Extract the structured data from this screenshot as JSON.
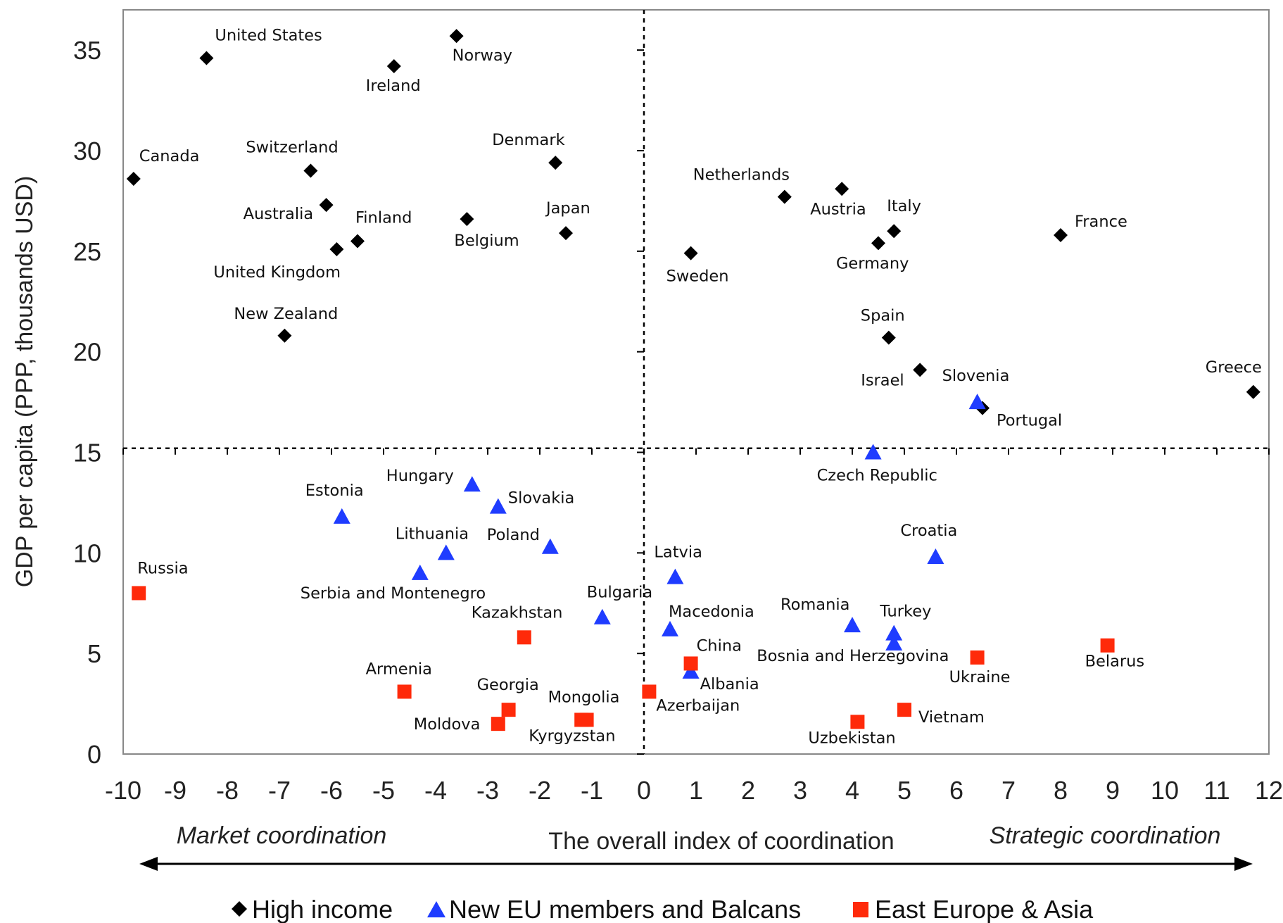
{
  "chart_data": {
    "type": "scatter",
    "title": "",
    "xlabel": "The overall index of coordination",
    "ylabel": "GDP per capita (PPP, thousands USD)",
    "xlim": [
      -10,
      12
    ],
    "ylim": [
      0,
      37
    ],
    "x_ticks": [
      -10,
      -9,
      -8,
      -7,
      -6,
      -5,
      -4,
      -3,
      -2,
      -1,
      0,
      1,
      2,
      3,
      4,
      5,
      6,
      7,
      8,
      9,
      10,
      11,
      12
    ],
    "y_ticks": [
      0,
      5,
      10,
      15,
      20,
      25,
      30,
      35
    ],
    "reference_lines": {
      "x": 0,
      "y": 15.2,
      "style": "dashed"
    },
    "annotations": {
      "left": "Market coordination",
      "right": "Strategic coordination"
    },
    "legend": {
      "position": "bottom",
      "entries": [
        "High income",
        "New EU members and  Balcans",
        "East Europe & Asia"
      ]
    },
    "colors": {
      "High income": "#000000",
      "New EU members and  Balcans": "#1f3cff",
      "East Europe & Asia": "#ff2a0a"
    },
    "series": [
      {
        "name": "High income",
        "marker": "diamond",
        "points": [
          {
            "label": "United States",
            "x": -8.4,
            "y": 34.6
          },
          {
            "label": "Norway",
            "x": -3.6,
            "y": 35.7
          },
          {
            "label": "Ireland",
            "x": -4.8,
            "y": 34.2
          },
          {
            "label": "Canada",
            "x": -9.8,
            "y": 28.6
          },
          {
            "label": "Switzerland",
            "x": -6.4,
            "y": 29.0
          },
          {
            "label": "Denmark",
            "x": -1.7,
            "y": 29.4
          },
          {
            "label": "Australia",
            "x": -6.1,
            "y": 27.3
          },
          {
            "label": "Finland",
            "x": -5.5,
            "y": 25.5
          },
          {
            "label": "Belgium",
            "x": -3.4,
            "y": 26.6
          },
          {
            "label": "Japan",
            "x": -1.5,
            "y": 25.9
          },
          {
            "label": "United Kingdom",
            "x": -5.9,
            "y": 25.1
          },
          {
            "label": "New Zealand",
            "x": -6.9,
            "y": 20.8
          },
          {
            "label": "Netherlands",
            "x": 2.7,
            "y": 27.7
          },
          {
            "label": "Austria",
            "x": 3.8,
            "y": 28.1
          },
          {
            "label": "Italy",
            "x": 4.8,
            "y": 26.0
          },
          {
            "label": "Germany",
            "x": 4.5,
            "y": 25.4
          },
          {
            "label": "France",
            "x": 8.0,
            "y": 25.8
          },
          {
            "label": "Sweden",
            "x": 0.9,
            "y": 24.9
          },
          {
            "label": "Spain",
            "x": 4.7,
            "y": 20.7
          },
          {
            "label": "Israel",
            "x": 5.3,
            "y": 19.1
          },
          {
            "label": "Portugal",
            "x": 6.5,
            "y": 17.2
          },
          {
            "label": "Greece",
            "x": 11.7,
            "y": 18.0
          }
        ]
      },
      {
        "name": "New EU members and  Balcans",
        "marker": "triangle",
        "points": [
          {
            "label": "Slovenia",
            "x": 6.4,
            "y": 17.5
          },
          {
            "label": "Czech Republic",
            "x": 4.4,
            "y": 15.0
          },
          {
            "label": "Hungary",
            "x": -3.3,
            "y": 13.4
          },
          {
            "label": "Slovakia",
            "x": -2.8,
            "y": 12.3
          },
          {
            "label": "Estonia",
            "x": -5.8,
            "y": 11.8
          },
          {
            "label": "Lithuania",
            "x": -3.8,
            "y": 10.0
          },
          {
            "label": "Poland",
            "x": -1.8,
            "y": 10.3
          },
          {
            "label": "Serbia and Montenegro",
            "x": -4.3,
            "y": 9.0
          },
          {
            "label": "Latvia",
            "x": 0.6,
            "y": 8.8
          },
          {
            "label": "Croatia",
            "x": 5.6,
            "y": 9.8
          },
          {
            "label": "Bulgaria",
            "x": -0.8,
            "y": 6.8
          },
          {
            "label": "Macedonia",
            "x": 0.5,
            "y": 6.2
          },
          {
            "label": "Romania",
            "x": 4.0,
            "y": 6.4
          },
          {
            "label": "Turkey",
            "x": 4.8,
            "y": 6.0
          },
          {
            "label": "Bosnia and Herzegovina",
            "x": 4.8,
            "y": 5.5
          },
          {
            "label": "Albania",
            "x": 0.9,
            "y": 4.1
          }
        ]
      },
      {
        "name": "East Europe & Asia",
        "marker": "square",
        "points": [
          {
            "label": "Russia",
            "x": -9.7,
            "y": 8.0
          },
          {
            "label": "Kazakhstan",
            "x": -2.3,
            "y": 5.8
          },
          {
            "label": "Armenia",
            "x": -4.6,
            "y": 3.1
          },
          {
            "label": "Georgia",
            "x": -2.6,
            "y": 2.2
          },
          {
            "label": "Moldova",
            "x": -2.8,
            "y": 1.5
          },
          {
            "label": "Mongolia",
            "x": -1.1,
            "y": 1.7
          },
          {
            "label": "Kyrgyzstan",
            "x": -1.2,
            "y": 1.7
          },
          {
            "label": "Azerbaijan",
            "x": 0.1,
            "y": 3.1
          },
          {
            "label": "China",
            "x": 0.9,
            "y": 4.5
          },
          {
            "label": "Uzbekistan",
            "x": 4.1,
            "y": 1.6
          },
          {
            "label": "Vietnam",
            "x": 5.0,
            "y": 2.2
          },
          {
            "label": "Ukraine",
            "x": 6.4,
            "y": 4.8
          },
          {
            "label": "Belarus",
            "x": 8.9,
            "y": 5.4
          }
        ]
      }
    ]
  }
}
